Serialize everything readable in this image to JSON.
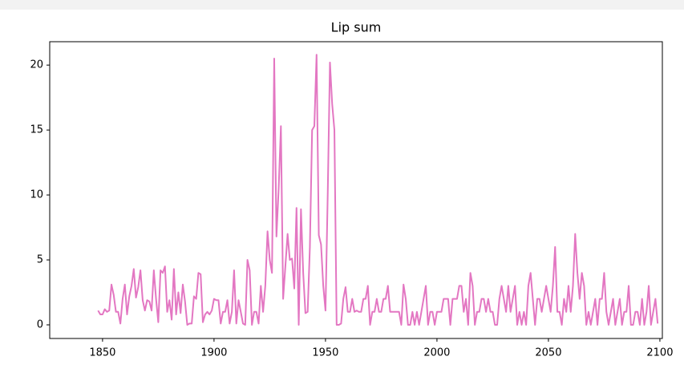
{
  "chart_data": {
    "type": "line",
    "title": "Lip sum",
    "x": [
      1848,
      1849,
      1850,
      1851,
      1852,
      1853,
      1854,
      1855,
      1856,
      1857,
      1858,
      1859,
      1860,
      1861,
      1862,
      1863,
      1864,
      1865,
      1866,
      1867,
      1868,
      1869,
      1870,
      1871,
      1872,
      1873,
      1874,
      1875,
      1876,
      1877,
      1878,
      1879,
      1880,
      1881,
      1882,
      1883,
      1884,
      1885,
      1886,
      1887,
      1888,
      1889,
      1890,
      1891,
      1892,
      1893,
      1894,
      1895,
      1896,
      1897,
      1898,
      1899,
      1900,
      1901,
      1902,
      1903,
      1904,
      1905,
      1906,
      1907,
      1908,
      1909,
      1910,
      1911,
      1912,
      1913,
      1914,
      1915,
      1916,
      1917,
      1918,
      1919,
      1920,
      1921,
      1922,
      1923,
      1924,
      1925,
      1926,
      1927,
      1928,
      1929,
      1930,
      1931,
      1932,
      1933,
      1934,
      1935,
      1936,
      1937,
      1938,
      1939,
      1940,
      1941,
      1942,
      1943,
      1944,
      1945,
      1946,
      1947,
      1948,
      1949,
      1950,
      1951,
      1952,
      1953,
      1954,
      1955,
      1956,
      1957,
      1958,
      1959,
      1960,
      1961,
      1962,
      1963,
      1964,
      1965,
      1966,
      1967,
      1968,
      1969,
      1970,
      1971,
      1972,
      1973,
      1974,
      1975,
      1976,
      1977,
      1978,
      1979,
      1980,
      1981,
      1982,
      1983,
      1984,
      1985,
      1986,
      1987,
      1988,
      1989,
      1990,
      1991,
      1992,
      1993,
      1994,
      1995,
      1996,
      1997,
      1998,
      1999,
      2000,
      2001,
      2002,
      2003,
      2004,
      2005,
      2006,
      2007,
      2008,
      2009,
      2010,
      2011,
      2012,
      2013,
      2014,
      2015,
      2016,
      2017,
      2018,
      2019,
      2020,
      2021,
      2022,
      2023,
      2024,
      2025,
      2026,
      2027,
      2028,
      2029,
      2030,
      2031,
      2032,
      2033,
      2034,
      2035,
      2036,
      2037,
      2038,
      2039,
      2040,
      2041,
      2042,
      2043,
      2044,
      2045,
      2046,
      2047,
      2048,
      2049,
      2050,
      2051,
      2052,
      2053,
      2054,
      2055,
      2056,
      2057,
      2058,
      2059,
      2060,
      2061,
      2062,
      2063,
      2064,
      2065,
      2066,
      2067,
      2068,
      2069,
      2070,
      2071,
      2072,
      2073,
      2074,
      2075,
      2076,
      2077,
      2078,
      2079,
      2080,
      2081,
      2082,
      2083,
      2084,
      2085,
      2086,
      2087,
      2088,
      2089,
      2090,
      2091,
      2092,
      2093,
      2094,
      2095,
      2096,
      2097,
      2098,
      2099
    ],
    "series": [
      {
        "name": "Lip sum",
        "color": "#e377c2",
        "values": [
          1.1,
          0.8,
          0.8,
          1.2,
          1.0,
          1.1,
          3.1,
          2.3,
          1.0,
          1.0,
          0.1,
          2.0,
          3.1,
          0.8,
          2.2,
          3.0,
          4.3,
          2.1,
          2.9,
          4.2,
          1.9,
          1.1,
          1.9,
          1.8,
          1.1,
          4.2,
          2.0,
          0.2,
          4.2,
          4.0,
          4.5,
          1.0,
          1.9,
          0.4,
          4.3,
          0.8,
          2.5,
          0.9,
          3.1,
          1.8,
          0.0,
          0.1,
          0.1,
          2.2,
          2.0,
          4.0,
          3.9,
          0.2,
          0.8,
          1.0,
          0.8,
          1.1,
          2.0,
          1.9,
          1.9,
          0.1,
          1.0,
          1.0,
          1.9,
          0.1,
          1.0,
          4.2,
          0.1,
          1.9,
          1.0,
          0.1,
          0.0,
          5.0,
          4.2,
          0.0,
          1.0,
          1.0,
          0.1,
          3.0,
          1.0,
          3.0,
          7.2,
          5.0,
          4.0,
          20.5,
          6.8,
          10.5,
          15.3,
          2.0,
          4.5,
          7.0,
          5.0,
          5.1,
          2.8,
          9.0,
          0.0,
          8.9,
          4.0,
          0.9,
          1.0,
          6.0,
          15.0,
          15.3,
          20.8,
          6.9,
          6.2,
          3.0,
          1.1,
          10.0,
          20.2,
          17.0,
          15.0,
          0.0,
          0.0,
          0.1,
          2.0,
          2.9,
          1.0,
          1.0,
          2.0,
          1.0,
          1.1,
          1.0,
          1.0,
          2.0,
          2.0,
          3.0,
          0.0,
          1.0,
          1.0,
          2.0,
          1.0,
          1.0,
          2.0,
          2.0,
          3.0,
          1.0,
          1.0,
          1.0,
          1.0,
          1.0,
          0.0,
          3.1,
          2.0,
          0.0,
          0.0,
          1.0,
          0.0,
          1.0,
          0.0,
          1.0,
          2.0,
          3.0,
          0.0,
          1.0,
          1.0,
          0.0,
          1.0,
          1.0,
          1.0,
          2.0,
          2.0,
          2.0,
          0.0,
          2.0,
          2.0,
          2.0,
          3.0,
          3.0,
          1.0,
          2.0,
          0.0,
          4.0,
          3.0,
          0.0,
          1.0,
          1.0,
          2.0,
          2.0,
          1.0,
          2.0,
          1.0,
          1.0,
          0.0,
          0.0,
          2.0,
          3.0,
          2.0,
          1.0,
          3.0,
          1.0,
          2.0,
          3.0,
          0.0,
          1.0,
          0.0,
          1.0,
          0.0,
          3.0,
          4.0,
          2.0,
          0.0,
          2.0,
          2.0,
          1.0,
          2.0,
          3.0,
          2.0,
          1.0,
          3.0,
          6.0,
          1.0,
          1.0,
          0.0,
          2.0,
          1.0,
          3.0,
          1.0,
          3.0,
          7.0,
          4.0,
          2.0,
          4.0,
          3.0,
          0.0,
          1.0,
          0.0,
          1.0,
          2.0,
          0.0,
          2.0,
          2.0,
          4.0,
          1.0,
          0.0,
          1.0,
          2.0,
          0.0,
          1.0,
          2.0,
          0.0,
          1.0,
          1.0,
          3.0,
          0.0,
          0.0,
          1.0,
          1.0,
          0.0,
          2.0,
          0.0,
          1.0,
          3.0,
          0.0,
          1.0,
          2.0,
          0.1
        ]
      }
    ],
    "xlim": [
      1826.3,
      2101.1
    ],
    "ylim": [
      -1.05,
      21.8
    ],
    "xticks": [
      1850,
      1900,
      1950,
      2000,
      2050,
      2100
    ],
    "yticks": [
      0,
      5,
      10,
      15,
      20
    ],
    "grid": false
  }
}
